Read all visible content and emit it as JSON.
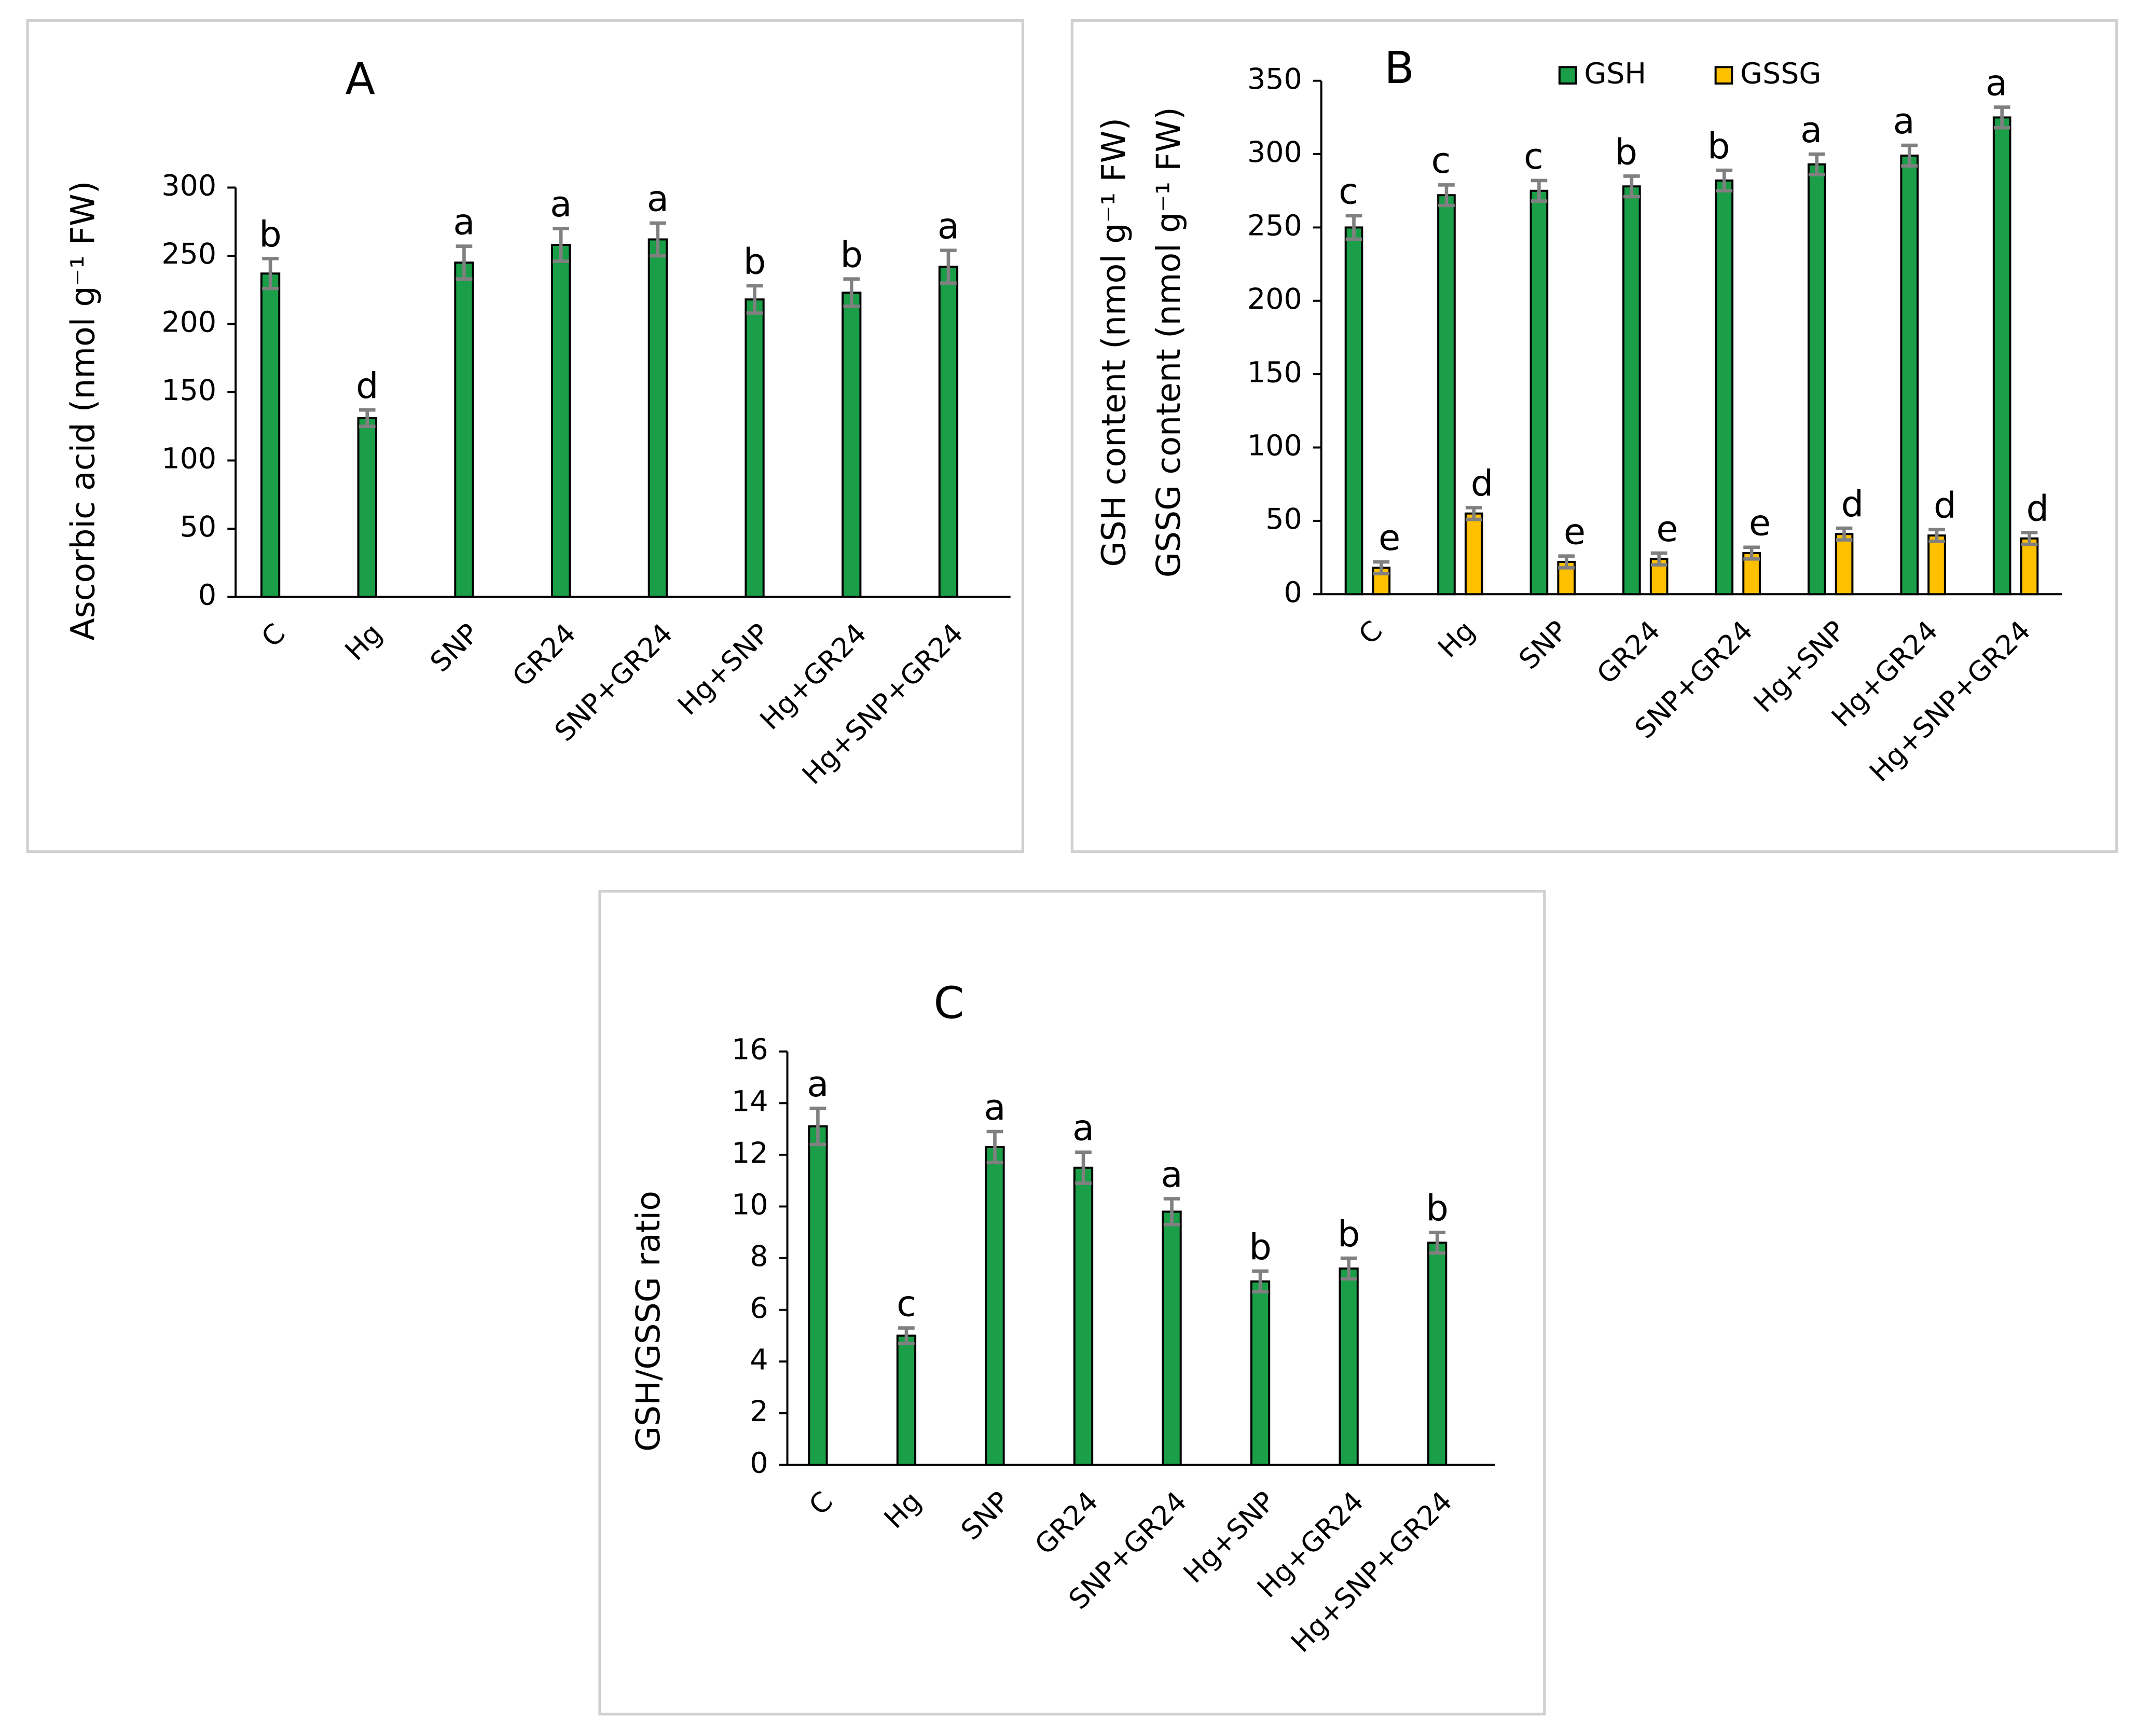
{
  "chart_data": [
    {
      "type": "bar",
      "title": "A",
      "ylabel": [
        "Ascorbic acid (nmol g⁻¹ FW)"
      ],
      "categories": [
        "C",
        "Hg",
        "SNP",
        "GR24",
        "SNP+GR24",
        "Hg+SNP",
        "Hg+GR24",
        "Hg+SNP+GR24"
      ],
      "series": [
        {
          "name": "Ascorbic acid",
          "color": "#1a9e48",
          "values": [
            237,
            131,
            245,
            258,
            262,
            218,
            223,
            242
          ],
          "errors": [
            11,
            6,
            12,
            12,
            12,
            10,
            10,
            12
          ],
          "letters": [
            "b",
            "d",
            "a",
            "a",
            "a",
            "b",
            "b",
            "a"
          ]
        }
      ],
      "ylim": [
        0,
        300
      ],
      "yticks": [
        0,
        50,
        100,
        150,
        200,
        250,
        300
      ],
      "grid": false,
      "legend": "none"
    },
    {
      "type": "bar",
      "title": "B",
      "ylabel": [
        "GSH content (nmol g⁻¹ FW)",
        "GSSG content (nmol g⁻¹ FW)"
      ],
      "categories": [
        "C",
        "Hg",
        "SNP",
        "GR24",
        "SNP+GR24",
        "Hg+SNP",
        "Hg+GR24",
        "Hg+SNP+GR24"
      ],
      "series": [
        {
          "name": "GSH",
          "color": "#1a9e48",
          "values": [
            250,
            272,
            275,
            278,
            282,
            293,
            299,
            325
          ],
          "errors": [
            8,
            7,
            7,
            7,
            7,
            7,
            7,
            7
          ],
          "letters": [
            "c",
            "c",
            "c",
            "b",
            "b",
            "a",
            "a",
            "a"
          ]
        },
        {
          "name": "GSSG",
          "color": "#ffc000",
          "values": [
            18,
            55,
            22,
            24,
            28,
            41,
            40,
            38
          ],
          "errors": [
            4,
            4,
            4,
            4,
            4,
            4,
            4,
            4
          ],
          "letters": [
            "e",
            "d",
            "e",
            "e",
            "e",
            "d",
            "d",
            "d"
          ]
        }
      ],
      "ylim": [
        0,
        350
      ],
      "yticks": [
        0,
        50,
        100,
        150,
        200,
        250,
        300,
        350
      ],
      "grid": false,
      "legend": "top"
    },
    {
      "type": "bar",
      "title": "C",
      "ylabel": [
        "GSH/GSSG ratio"
      ],
      "categories": [
        "C",
        "Hg",
        "SNP",
        "GR24",
        "SNP+GR24",
        "Hg+SNP",
        "Hg+GR24",
        "Hg+SNP+GR24"
      ],
      "series": [
        {
          "name": "GSH/GSSG ratio",
          "color": "#1a9e48",
          "values": [
            13.1,
            5.0,
            12.3,
            11.5,
            9.8,
            7.1,
            7.6,
            8.6
          ],
          "errors": [
            0.7,
            0.3,
            0.6,
            0.6,
            0.5,
            0.4,
            0.4,
            0.4
          ],
          "letters": [
            "a",
            "c",
            "a",
            "a",
            "a",
            "b",
            "b",
            "b"
          ]
        }
      ],
      "ylim": [
        0,
        16
      ],
      "yticks": [
        0,
        2,
        4,
        6,
        8,
        10,
        12,
        14,
        16
      ],
      "grid": false,
      "legend": "none"
    }
  ]
}
